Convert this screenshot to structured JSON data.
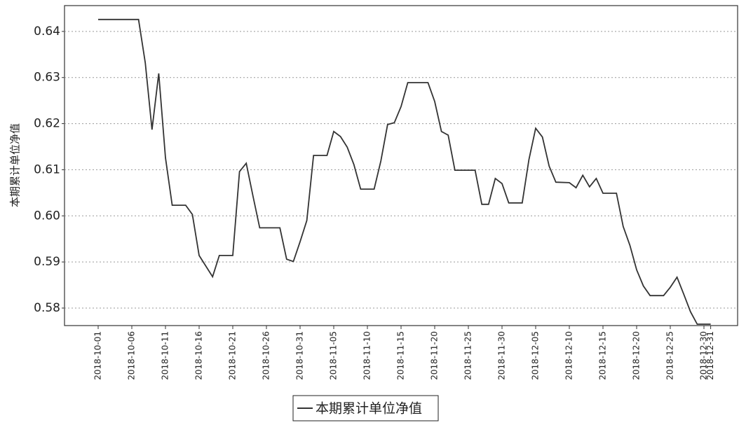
{
  "chart_data": {
    "type": "line",
    "y_label": "本期累计单位净值",
    "x": [
      "2018-10-01",
      "2018-10-07",
      "2018-10-08",
      "2018-10-09",
      "2018-10-10",
      "2018-10-11",
      "2018-10-12",
      "2018-10-14",
      "2018-10-15",
      "2018-10-16",
      "2018-10-18",
      "2018-10-19",
      "2018-10-21",
      "2018-10-22",
      "2018-10-23",
      "2018-10-24",
      "2018-10-25",
      "2018-10-28",
      "2018-10-29",
      "2018-10-30",
      "2018-10-31",
      "2018-11-01",
      "2018-11-02",
      "2018-11-04",
      "2018-11-05",
      "2018-11-06",
      "2018-11-07",
      "2018-11-08",
      "2018-11-09",
      "2018-11-11",
      "2018-11-12",
      "2018-11-13",
      "2018-11-14",
      "2018-11-15",
      "2018-11-16",
      "2018-11-18",
      "2018-11-19",
      "2018-11-20",
      "2018-11-21",
      "2018-11-22",
      "2018-11-23",
      "2018-11-26",
      "2018-11-27",
      "2018-11-28",
      "2018-11-29",
      "2018-11-30",
      "2018-12-01",
      "2018-12-03",
      "2018-12-04",
      "2018-12-05",
      "2018-12-06",
      "2018-12-07",
      "2018-12-08",
      "2018-12-10",
      "2018-12-11",
      "2018-12-12",
      "2018-12-13",
      "2018-12-14",
      "2018-12-15",
      "2018-12-17",
      "2018-12-18",
      "2018-12-19",
      "2018-12-20",
      "2018-12-21",
      "2018-12-22",
      "2018-12-24",
      "2018-12-25",
      "2018-12-26",
      "2018-12-27",
      "2018-12-28",
      "2018-12-29",
      "2018-12-31"
    ],
    "series": [
      {
        "name": "本期累计单位净值",
        "color": "#333333",
        "values": [
          0.6426,
          0.6426,
          0.6332,
          0.6187,
          0.6309,
          0.6126,
          0.6023,
          0.6023,
          0.6003,
          0.5914,
          0.5868,
          0.5914,
          0.5914,
          0.6096,
          0.6114,
          0.6043,
          0.5974,
          0.5974,
          0.5906,
          0.5901,
          0.5944,
          0.599,
          0.6131,
          0.6131,
          0.6183,
          0.6172,
          0.6149,
          0.6111,
          0.6058,
          0.6058,
          0.6119,
          0.6198,
          0.6202,
          0.6237,
          0.6289,
          0.6289,
          0.6289,
          0.6248,
          0.6183,
          0.6175,
          0.6099,
          0.6099,
          0.6025,
          0.6025,
          0.6081,
          0.607,
          0.6028,
          0.6028,
          0.6122,
          0.619,
          0.6171,
          0.6108,
          0.6073,
          0.6072,
          0.6061,
          0.6088,
          0.6063,
          0.6081,
          0.6049,
          0.6049,
          0.5977,
          0.5936,
          0.5883,
          0.5848,
          0.5827,
          0.5827,
          0.5845,
          0.5867,
          0.583,
          0.5792,
          0.5765,
          0.5765
        ]
      }
    ],
    "xlim": [
      "2018-09-26",
      "2019-01-04"
    ],
    "xticks": [
      "2018-10-01",
      "2018-10-06",
      "2018-10-11",
      "2018-10-16",
      "2018-10-21",
      "2018-10-26",
      "2018-10-31",
      "2018-11-05",
      "2018-11-10",
      "2018-11-15",
      "2018-11-20",
      "2018-11-25",
      "2018-11-30",
      "2018-12-05",
      "2018-12-10",
      "2018-12-15",
      "2018-12-20",
      "2018-12-25",
      "2018-12-30",
      "2018-12-31"
    ],
    "ylim": [
      0.5762,
      0.6456
    ],
    "yticks": [
      0.58,
      0.59,
      {
        "value": 0.6,
        "label": "0.60"
      },
      0.61,
      0.62,
      0.63,
      0.64
    ],
    "grid": true
  }
}
